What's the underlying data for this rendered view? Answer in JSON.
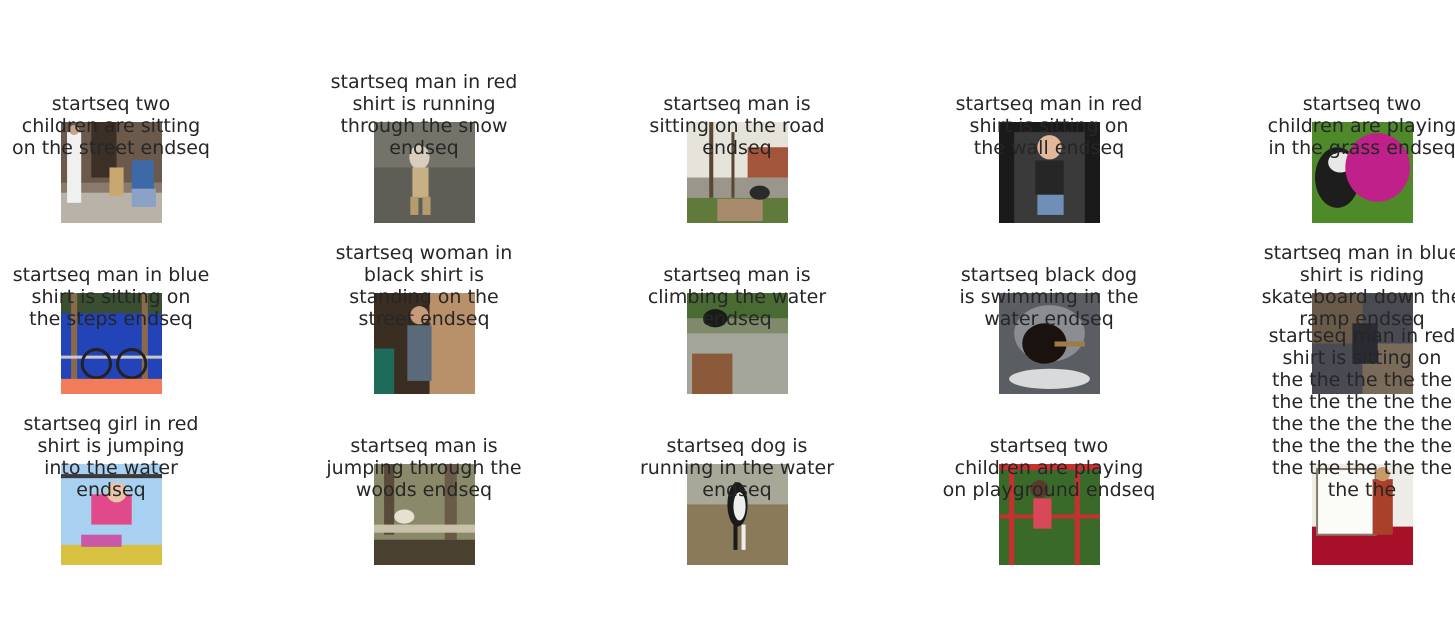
{
  "figure": {
    "tiles": [
      {
        "caption": "startseq two\nchildren are sitting\non the street endseq",
        "scene": "two children sitting on steps"
      },
      {
        "caption": "startseq man in red\nshirt is running\nthrough the snow\nendseq",
        "scene": "toddler walking on gravel"
      },
      {
        "caption": "startseq man is\nsitting on the road\nendseq",
        "scene": "person crouched by street trees"
      },
      {
        "caption": "startseq man in red\nshirt is sitting on\nthe wall endseq",
        "scene": "boy in car seat"
      },
      {
        "caption": "startseq two\nchildren are playing\nin the grass endseq",
        "scene": "dog with pink frisbee on grass"
      },
      {
        "caption": "startseq man in blue\nshirt is sitting on\nthe steps endseq",
        "scene": "bicycle behind railing"
      },
      {
        "caption": "startseq woman in\nblack shirt is\nstanding on the\nstreet endseq",
        "scene": "man drinking in doorway"
      },
      {
        "caption": "startseq man is\nclimbing the water\nendseq",
        "scene": "dog on dock by water"
      },
      {
        "caption": "startseq black dog\nis swimming in the\nwater endseq",
        "scene": "black dog swimming with stick"
      },
      {
        "caption": "startseq man in blue\nshirt is riding\nskateboard down the\nramp endseq",
        "scene": "person on tiled ramp"
      },
      {
        "caption": "startseq girl in red\nshirt is jumping\ninto the water\nendseq",
        "scene": "girl on monkey bars"
      },
      {
        "caption": "startseq man is\njumping through the\nwoods endseq",
        "scene": "dog jumping log in woods"
      },
      {
        "caption": "startseq dog is\nrunning in the water\nendseq",
        "scene": "black and white dog running on shore"
      },
      {
        "caption": "startseq two\nchildren are playing\non playground endseq",
        "scene": "child on red climbing frame"
      },
      {
        "caption": "startseq man in red\nshirt is sitting on\nthe the the the the\nthe the the the the\nthe the the the the\nthe the the the the\nthe the the the the\nthe the",
        "scene": "girl in red dress on red carpet"
      }
    ]
  }
}
